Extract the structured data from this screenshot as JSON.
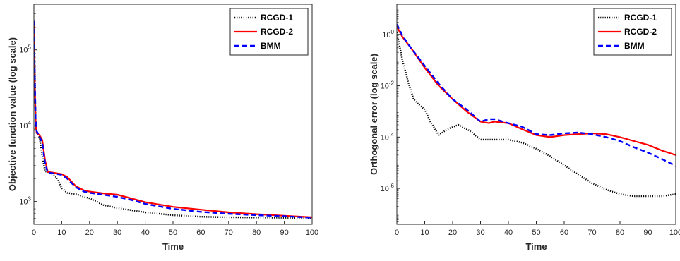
{
  "chart_data": [
    {
      "type": "line",
      "title": "",
      "xlabel": "Time",
      "ylabel": "Objective function value (log scale)",
      "xscale": "linear",
      "yscale": "log",
      "xlim": [
        0,
        100
      ],
      "ylim": [
        500,
        400000
      ],
      "xticks": [
        0,
        10,
        20,
        30,
        40,
        50,
        60,
        70,
        80,
        90,
        100
      ],
      "yticks": [
        {
          "value": 1000,
          "base": "10",
          "exp": "3"
        },
        {
          "value": 10000,
          "base": "10",
          "exp": "4"
        },
        {
          "value": 100000,
          "base": "10",
          "exp": "5"
        }
      ],
      "grid": false,
      "legend_position": "top-right",
      "series": [
        {
          "name": "RCGD-1",
          "color": "#000000",
          "style": "dotted",
          "x": [
            0,
            0.3,
            0.6,
            1,
            2,
            3,
            4,
            6,
            8,
            10,
            12,
            15,
            20,
            25,
            30,
            40,
            50,
            60,
            70,
            80,
            90,
            100
          ],
          "y": [
            250000,
            60000,
            12000,
            8000,
            7000,
            4000,
            2500,
            2400,
            2100,
            1500,
            1300,
            1250,
            1100,
            900,
            820,
            720,
            660,
            630,
            620,
            615,
            610,
            605
          ]
        },
        {
          "name": "RCGD-2",
          "color": "#ff0000",
          "style": "solid",
          "x": [
            0,
            0.3,
            0.6,
            1,
            2,
            3,
            4,
            5,
            7,
            10,
            12,
            15,
            18,
            20,
            25,
            30,
            35,
            40,
            50,
            60,
            70,
            80,
            90,
            100
          ],
          "y": [
            220000,
            40000,
            11000,
            8000,
            7500,
            6500,
            3500,
            2450,
            2400,
            2300,
            2100,
            1600,
            1400,
            1350,
            1280,
            1230,
            1100,
            980,
            850,
            780,
            720,
            680,
            650,
            620
          ]
        },
        {
          "name": "BMM",
          "color": "#0000ff",
          "style": "dashed",
          "x": [
            0,
            0.3,
            0.6,
            1,
            2,
            3,
            4,
            5,
            7,
            10,
            12,
            15,
            18,
            20,
            25,
            30,
            35,
            40,
            50,
            60,
            70,
            80,
            90,
            100
          ],
          "y": [
            240000,
            45000,
            12000,
            8500,
            7200,
            6000,
            3200,
            2400,
            2350,
            2250,
            2000,
            1550,
            1350,
            1300,
            1230,
            1150,
            1050,
            930,
            800,
            730,
            690,
            660,
            640,
            610
          ]
        }
      ]
    },
    {
      "type": "line",
      "title": "",
      "xlabel": "Time",
      "ylabel": "Orthogonal error (log scale)",
      "xscale": "linear",
      "yscale": "log",
      "xlim": [
        0,
        100
      ],
      "ylim": [
        4e-08,
        15
      ],
      "xticks": [
        0,
        10,
        20,
        30,
        40,
        50,
        60,
        70,
        80,
        90,
        100
      ],
      "yticks": [
        {
          "value": 1e-06,
          "base": "10",
          "exp": "-6"
        },
        {
          "value": 0.0001,
          "base": "10",
          "exp": "-4"
        },
        {
          "value": 0.01,
          "base": "10",
          "exp": "-2"
        },
        {
          "value": 1,
          "base": "10",
          "exp": "0"
        }
      ],
      "grid": false,
      "legend_position": "top-right",
      "series": [
        {
          "name": "RCGD-1",
          "color": "#000000",
          "style": "dotted",
          "x": [
            0,
            2,
            4,
            6,
            8,
            10,
            12,
            15,
            18,
            22,
            26,
            30,
            35,
            40,
            45,
            50,
            55,
            60,
            65,
            70,
            75,
            80,
            85,
            90,
            95,
            100
          ],
          "y": [
            1.2,
            0.1,
            0.015,
            0.003,
            0.0018,
            0.0012,
            0.0004,
            0.00012,
            0.0002,
            0.0003,
            0.00018,
            8e-05,
            8e-05,
            8e-05,
            6e-05,
            3.5e-05,
            1.8e-05,
            8e-06,
            3.5e-06,
            1.6e-06,
            9e-07,
            6e-07,
            5e-07,
            5e-07,
            5e-07,
            6e-07
          ]
        },
        {
          "name": "RCGD-2",
          "color": "#ff0000",
          "style": "solid",
          "x": [
            0,
            2,
            5,
            10,
            15,
            20,
            25,
            30,
            33,
            35,
            40,
            45,
            50,
            55,
            60,
            65,
            70,
            75,
            80,
            85,
            90,
            95,
            100
          ],
          "y": [
            2.0,
            0.8,
            0.3,
            0.05,
            0.01,
            0.003,
            0.001,
            0.0004,
            0.00035,
            0.0004,
            0.00035,
            0.0002,
            0.00012,
            0.0001,
            0.00012,
            0.00013,
            0.00014,
            0.00013,
            0.0001,
            7e-05,
            5e-05,
            3e-05,
            2e-05
          ]
        },
        {
          "name": "BMM",
          "color": "#0000ff",
          "style": "dashed",
          "x": [
            0,
            2,
            5,
            10,
            15,
            20,
            25,
            30,
            33,
            35,
            40,
            45,
            50,
            55,
            60,
            65,
            70,
            75,
            80,
            85,
            90,
            95,
            100
          ],
          "y": [
            2.5,
            0.9,
            0.3,
            0.06,
            0.012,
            0.003,
            0.0012,
            0.0004,
            0.0005,
            0.0005,
            0.00035,
            0.00025,
            0.00013,
            0.00012,
            0.00014,
            0.00015,
            0.00013,
            0.0001,
            7e-05,
            4e-05,
            2.5e-05,
            1.4e-05,
            7.5e-06
          ]
        }
      ]
    }
  ]
}
